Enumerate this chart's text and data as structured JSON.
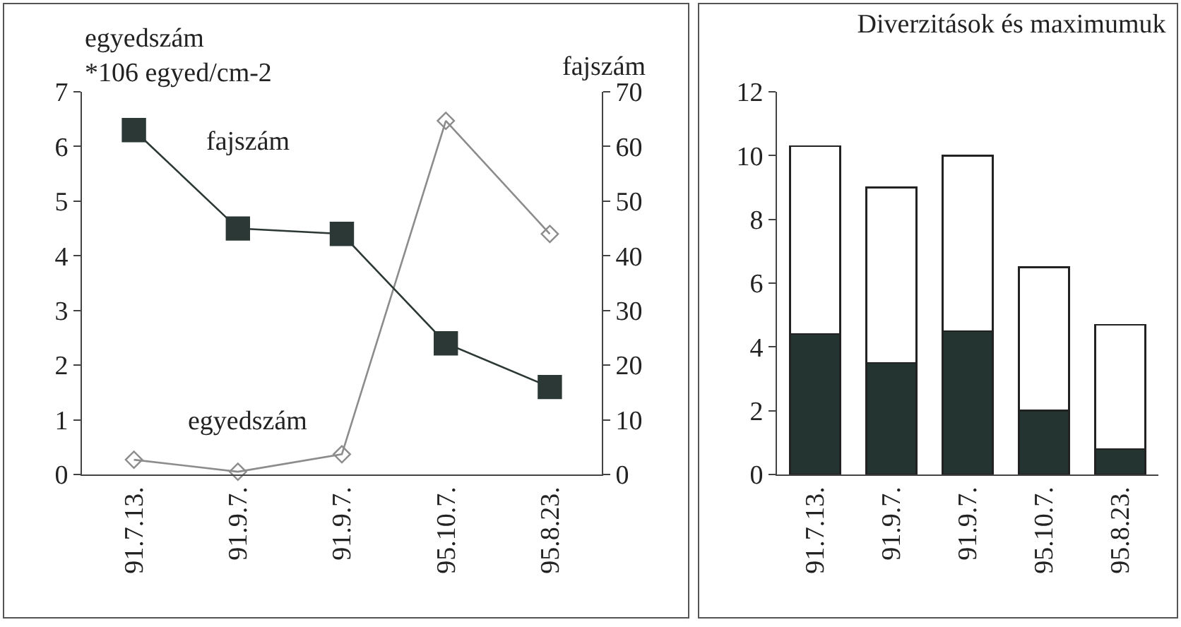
{
  "chart_data": [
    {
      "type": "line",
      "ylabel": "egyedszám\n*106 egyed/cm-2",
      "y2label": "fajszám",
      "categories": [
        "91.7.13.",
        "91.9.7.",
        "91.9.7.",
        "95.10.7.",
        "95.8.23."
      ],
      "series": [
        {
          "name": "fajszám",
          "color": "#2b3835",
          "axis": "y2",
          "marker": "square",
          "values": [
            63,
            45,
            44,
            24,
            16
          ]
        },
        {
          "name": "egyedszám",
          "color": "#8c8c8c",
          "marker": "diamond",
          "values": [
            0.27,
            0.05,
            0.37,
            6.47,
            4.4
          ]
        }
      ],
      "ylim": [
        0,
        7
      ],
      "yticks": [
        0,
        1,
        2,
        3,
        4,
        5,
        6,
        7
      ],
      "y2lim": [
        0,
        70
      ],
      "y2ticks": [
        0,
        10,
        20,
        30,
        40,
        50,
        60,
        70
      ],
      "grid": false,
      "legend": false
    },
    {
      "type": "bar",
      "stacked": true,
      "title": "Diverzitások és maximumuk",
      "categories": [
        "91.7.13.",
        "91.9.7.",
        "91.9.7.",
        "95.10.7.",
        "95.8.23."
      ],
      "series": [
        {
          "color": "#243430",
          "values": [
            4.4,
            3.5,
            4.5,
            2.0,
            0.8
          ]
        },
        {
          "color": "#ffffff",
          "values": [
            5.9,
            5.5,
            5.5,
            4.5,
            3.9
          ]
        }
      ],
      "ylim": [
        0,
        12
      ],
      "yticks": [
        0,
        2,
        4,
        6,
        8,
        10,
        12
      ],
      "grid": false,
      "legend": false
    }
  ]
}
